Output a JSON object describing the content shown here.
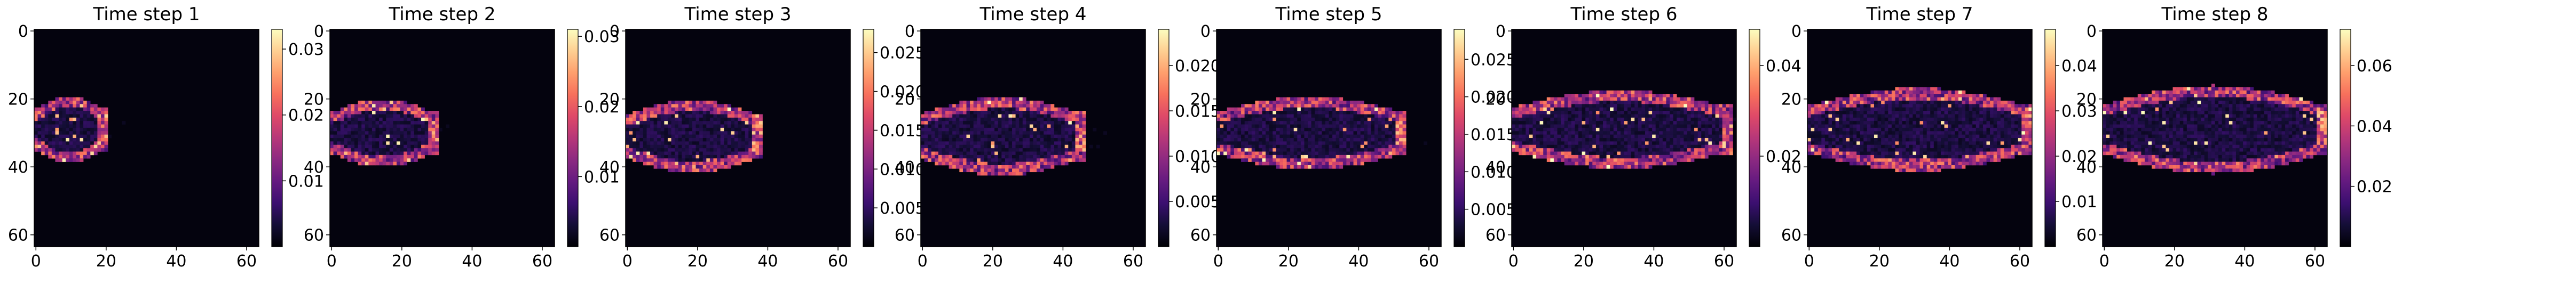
{
  "chart_data": [
    {
      "type": "heatmap",
      "title": "Time step 1",
      "xlim": [
        0,
        63
      ],
      "ylim": [
        63,
        0
      ],
      "xticks": [
        0,
        20,
        40,
        60
      ],
      "yticks": [
        0,
        20,
        40,
        60
      ],
      "colorbar": {
        "min": 0,
        "max": 0.033,
        "ticks": [
          0.01,
          0.02,
          0.03
        ],
        "tick_labels": [
          "0.01",
          "0.02",
          "0.03"
        ]
      },
      "plume": {
        "front_x": 19,
        "center_y": 29,
        "thickness": 20,
        "color_max": 0.033
      }
    },
    {
      "type": "heatmap",
      "title": "Time step 2",
      "xlim": [
        0,
        63
      ],
      "ylim": [
        63,
        0
      ],
      "xticks": [
        0,
        20,
        40,
        60
      ],
      "yticks": [
        0,
        20,
        40,
        60
      ],
      "colorbar": {
        "min": 0,
        "max": 0.031,
        "ticks": [
          0.01,
          0.02,
          0.03
        ],
        "tick_labels": [
          "0.01",
          "0.02",
          "0.03"
        ]
      },
      "plume": {
        "front_x": 29,
        "center_y": 30,
        "thickness": 20,
        "color_max": 0.031
      }
    },
    {
      "type": "heatmap",
      "title": "Time step 3",
      "xlim": [
        0,
        63
      ],
      "ylim": [
        63,
        0
      ],
      "xticks": [
        0,
        20,
        40,
        60
      ],
      "yticks": [
        0,
        20,
        40,
        60
      ],
      "colorbar": {
        "min": 0,
        "max": 0.028,
        "ticks": [
          0.005,
          0.01,
          0.015,
          0.02,
          0.025
        ],
        "tick_labels": [
          "0.005",
          "0.010",
          "0.015",
          "0.020",
          "0.025"
        ]
      },
      "plume": {
        "front_x": 37,
        "center_y": 31,
        "thickness": 22,
        "color_max": 0.028
      }
    },
    {
      "type": "heatmap",
      "title": "Time step 4",
      "xlim": [
        0,
        63
      ],
      "ylim": [
        63,
        0
      ],
      "xticks": [
        0,
        20,
        40,
        60
      ],
      "yticks": [
        0,
        20,
        40,
        60
      ],
      "colorbar": {
        "min": 0,
        "max": 0.024,
        "ticks": [
          0.005,
          0.01,
          0.015,
          0.02
        ],
        "tick_labels": [
          "0.005",
          "0.010",
          "0.015",
          "0.020"
        ]
      },
      "plume": {
        "front_x": 45,
        "center_y": 31,
        "thickness": 24,
        "color_max": 0.024
      }
    },
    {
      "type": "heatmap",
      "title": "Time step 5",
      "xlim": [
        0,
        63
      ],
      "ylim": [
        63,
        0
      ],
      "xticks": [
        0,
        20,
        40,
        60
      ],
      "yticks": [
        0,
        20,
        40,
        60
      ],
      "colorbar": {
        "min": 0,
        "max": 0.029,
        "ticks": [
          0.005,
          0.01,
          0.015,
          0.02,
          0.025
        ],
        "tick_labels": [
          "0.005",
          "0.010",
          "0.015",
          "0.020",
          "0.025"
        ]
      },
      "plume": {
        "front_x": 52,
        "center_y": 30,
        "thickness": 22,
        "color_max": 0.029
      }
    },
    {
      "type": "heatmap",
      "title": "Time step 6",
      "xlim": [
        0,
        63
      ],
      "ylim": [
        63,
        0
      ],
      "xticks": [
        0,
        20,
        40,
        60
      ],
      "yticks": [
        0,
        20,
        40,
        60
      ],
      "colorbar": {
        "min": 0,
        "max": 0.048,
        "ticks": [
          0.02,
          0.04
        ],
        "tick_labels": [
          "0.02",
          "0.04"
        ]
      },
      "plume": {
        "front_x": 61,
        "center_y": 29,
        "thickness": 24,
        "color_max": 0.048
      }
    },
    {
      "type": "heatmap",
      "title": "Time step 7",
      "xlim": [
        0,
        63
      ],
      "ylim": [
        63,
        0
      ],
      "xticks": [
        0,
        20,
        40,
        60
      ],
      "yticks": [
        0,
        20,
        40,
        60
      ],
      "colorbar": {
        "min": 0,
        "max": 0.048,
        "ticks": [
          0.01,
          0.02,
          0.03,
          0.04
        ],
        "tick_labels": [
          "0.01",
          "0.02",
          "0.03",
          "0.04"
        ]
      },
      "plume": {
        "front_x": 62,
        "center_y": 29,
        "thickness": 26,
        "color_max": 0.048
      }
    },
    {
      "type": "heatmap",
      "title": "Time step 8",
      "xlim": [
        0,
        63
      ],
      "ylim": [
        63,
        0
      ],
      "xticks": [
        0,
        20,
        40,
        60
      ],
      "yticks": [
        0,
        20,
        40,
        60
      ],
      "colorbar": {
        "min": 0,
        "max": 0.072,
        "ticks": [
          0.02,
          0.04,
          0.06
        ],
        "tick_labels": [
          "0.02",
          "0.04",
          "0.06"
        ]
      },
      "plume": {
        "front_x": 62,
        "center_y": 29,
        "thickness": 28,
        "color_max": 0.072
      }
    }
  ]
}
